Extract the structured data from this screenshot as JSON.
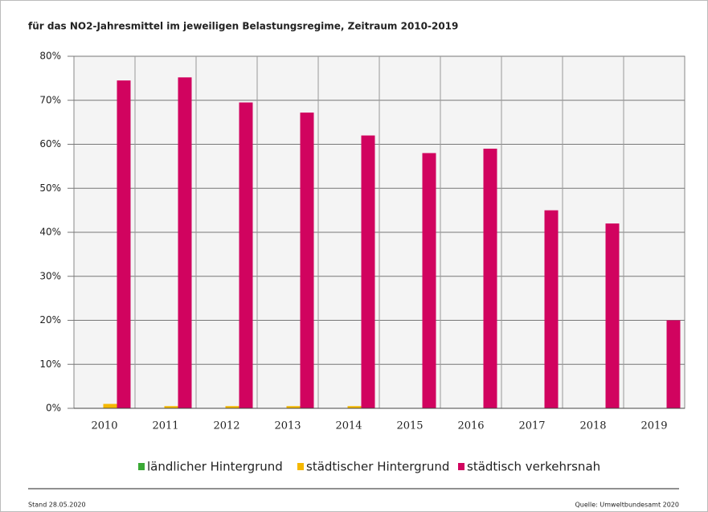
{
  "chart_data": {
    "type": "bar",
    "title": "für das NO2-Jahresmittel im jeweiligen Belastungsregime, Zeitraum 2010-2019",
    "categories": [
      "2010",
      "2011",
      "2012",
      "2013",
      "2014",
      "2015",
      "2016",
      "2017",
      "2018",
      "2019"
    ],
    "series": [
      {
        "name": "ländlicher Hintergrund",
        "color": "#3aa935",
        "values": [
          0,
          0,
          0,
          0,
          0,
          0,
          0,
          0,
          0,
          0
        ]
      },
      {
        "name": "städtischer Hintergrund",
        "color": "#f5b800",
        "values": [
          1,
          0.5,
          0.5,
          0.5,
          0.5,
          0,
          0,
          0,
          0,
          0
        ]
      },
      {
        "name": "städtisch verkehrsnah",
        "color": "#d1035f",
        "values": [
          74.5,
          75.2,
          69.5,
          67.2,
          62,
          58,
          59,
          45,
          42,
          20
        ]
      }
    ],
    "ylim": [
      0,
      80
    ],
    "yticks": [
      {
        "value": 0,
        "label": "0%"
      },
      {
        "value": 10,
        "label": "10%"
      },
      {
        "value": 20,
        "label": "20%"
      },
      {
        "value": 30,
        "label": "30%"
      },
      {
        "value": 40,
        "label": "40%"
      },
      {
        "value": 50,
        "label": "50%"
      },
      {
        "value": 60,
        "label": "60%"
      },
      {
        "value": 70,
        "label": "70%"
      },
      {
        "value": 80,
        "label": "80%"
      }
    ],
    "grid": true,
    "legend": "bottom",
    "footer_left": "Stand 28.05.2020",
    "footer_right": "Quelle: Umweltbundesamt 2020"
  }
}
